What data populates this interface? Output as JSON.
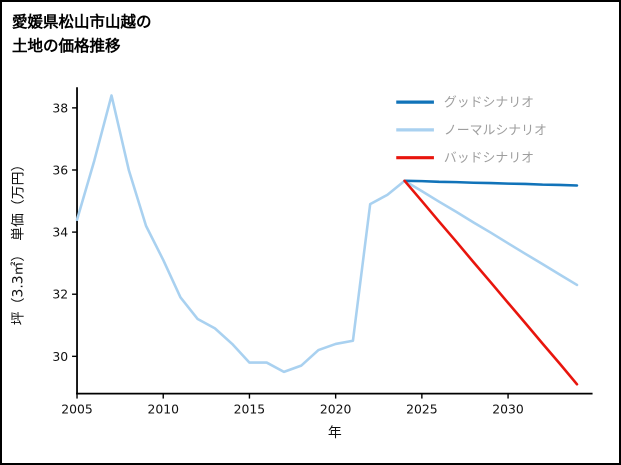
{
  "title": {
    "line1": "愛媛県松山市山越の",
    "line2": "土地の価格推移"
  },
  "chart_data": {
    "type": "line",
    "title": "愛媛県松山市山越の土地の価格推移",
    "xlabel": "年",
    "ylabel": "坪（3.3㎡）　単価（万円）",
    "xlim": [
      2005,
      2034.9
    ],
    "ylim": [
      28.8,
      38.6
    ],
    "xticks": [
      2005,
      2010,
      2015,
      2020,
      2025,
      2030
    ],
    "yticks": [
      30,
      32,
      34,
      36,
      38
    ],
    "grid": false,
    "legend_position": "top-right",
    "axis_color": "#000000",
    "legend_text_color": "#9e9e9e",
    "series": [
      {
        "id": "good",
        "name": "グッドシナリオ",
        "color": "#1173b9",
        "z": 2,
        "x": [
          2024,
          2025,
          2026,
          2027,
          2028,
          2029,
          2030,
          2031,
          2032,
          2033,
          2034
        ],
        "values": [
          35.65,
          35.64,
          35.62,
          35.61,
          35.59,
          35.58,
          35.56,
          35.55,
          35.53,
          35.52,
          35.5
        ]
      },
      {
        "id": "normal",
        "name": "ノーマルシナリオ",
        "color": "#a9d1f0",
        "z": 1,
        "x": [
          2005,
          2006,
          2007,
          2008,
          2009,
          2010,
          2011,
          2012,
          2013,
          2014,
          2015,
          2016,
          2017,
          2018,
          2019,
          2020,
          2021,
          2022,
          2023,
          2024,
          2025,
          2026,
          2027,
          2028,
          2029,
          2030,
          2031,
          2032,
          2033,
          2034
        ],
        "values": [
          34.4,
          36.3,
          38.4,
          36.0,
          34.2,
          33.1,
          31.9,
          31.2,
          30.9,
          30.4,
          29.8,
          29.8,
          29.5,
          29.7,
          30.2,
          30.4,
          30.5,
          34.9,
          35.2,
          35.65,
          35.32,
          34.98,
          34.65,
          34.31,
          33.98,
          33.64,
          33.3,
          32.97,
          32.63,
          32.3
        ]
      },
      {
        "id": "bad",
        "name": "バッドシナリオ",
        "color": "#e8150d",
        "z": 3,
        "x": [
          2024,
          2025,
          2026,
          2027,
          2028,
          2029,
          2030,
          2031,
          2032,
          2033,
          2034
        ],
        "values": [
          35.65,
          35.0,
          34.34,
          33.69,
          33.03,
          32.38,
          31.72,
          31.07,
          30.41,
          29.76,
          29.1
        ]
      }
    ]
  }
}
